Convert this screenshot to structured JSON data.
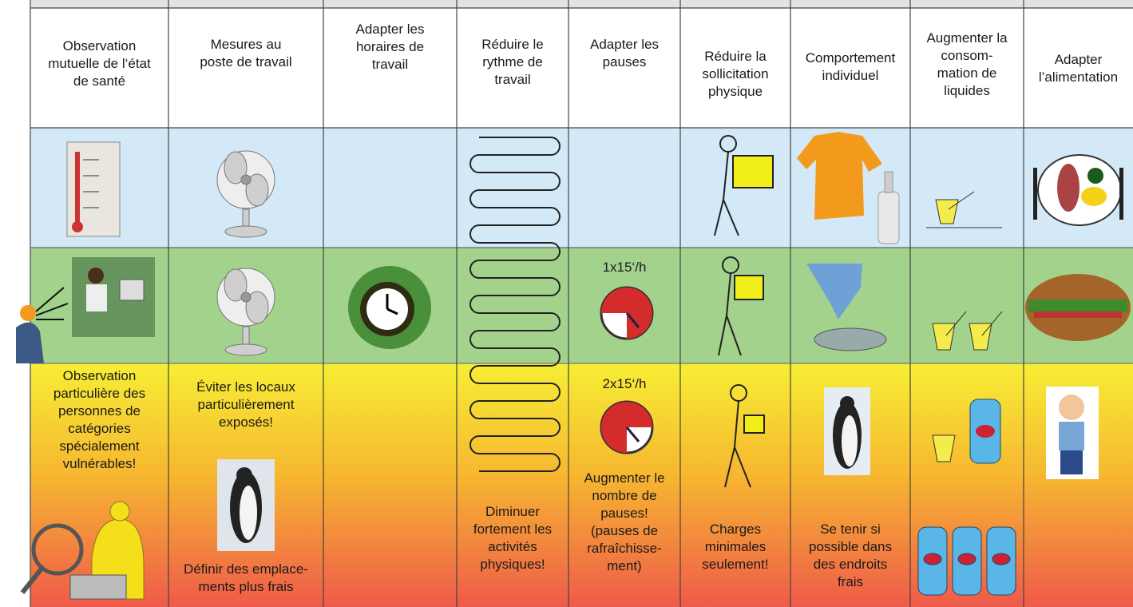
{
  "header_columns": [
    "Observation\nmutuelle de l‘état\nde santé",
    "Mesures au\nposte de travail",
    "Adapter les\nhoraires de\ntravail",
    "Réduire le\nrythme de\ntravail",
    "Adapter les\npauses",
    "Réduire la\nsollicitation\nphysique",
    "Comportement\nindividuel",
    "Augmenter la\nconsom-\nmation de\nliquides",
    "Adapter\nl’alimentation"
  ],
  "warm_row": {
    "pause_rate": "1x15‘/h"
  },
  "hot_row": {
    "observation": "Observation\nparticulière des\npersonnes de\ncatégories\nspécialement\nvulnérables!",
    "workplace_avoid": "Éviter les locaux\nparticulièrement\nexposés!",
    "workplace_cool": "Définir des emplace-\nments plus frais",
    "rhythm": "Diminuer\nfortement les\nactivités\nphysiques!",
    "pause_rate": "2x15‘/h",
    "pauses": "Augmenter le\nnombre de\npauses!\n(pauses de\nrafraîchisse-\nment)",
    "physical": "Charges\nminimales\nseulement!",
    "behaviour": "Se tenir si\npossible dans\ndes endroits\nfrais"
  }
}
